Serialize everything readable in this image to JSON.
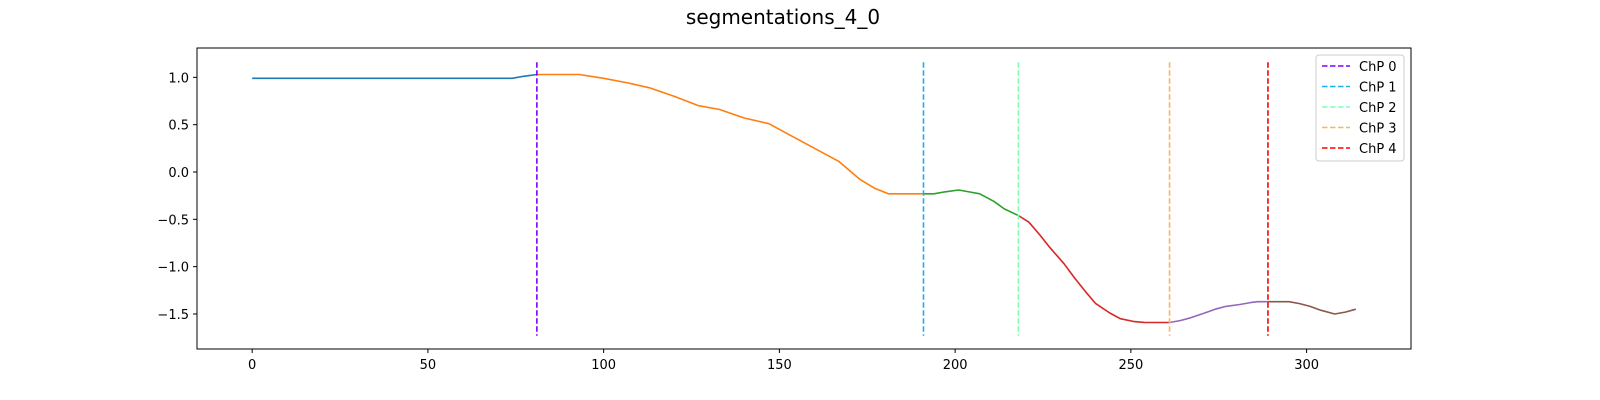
{
  "chart_data": {
    "type": "line",
    "title": "segmentations_4_0",
    "xlabel": "",
    "ylabel": "",
    "xlim": [
      -15.7,
      329.7
    ],
    "ylim": [
      -1.87,
      1.31
    ],
    "xticks": [
      0,
      50,
      100,
      150,
      200,
      250,
      300
    ],
    "yticks": [
      1.0,
      0.5,
      0.0,
      -0.5,
      -1.0,
      -1.5
    ],
    "xtick_labels": [
      "0",
      "50",
      "100",
      "150",
      "200",
      "250",
      "300"
    ],
    "ytick_labels": [
      "1.0",
      "0.5",
      "0.0",
      "−0.5",
      "−1.0",
      "−1.5"
    ],
    "grid": false,
    "legend_position": "top-right",
    "segments": [
      {
        "color": "#1f77b4",
        "x": [
          0,
          10,
          20,
          30,
          40,
          50,
          60,
          70,
          74,
          77,
          81
        ],
        "y": [
          0.99,
          0.99,
          0.99,
          0.99,
          0.99,
          0.99,
          0.99,
          0.99,
          0.99,
          1.01,
          1.03
        ]
      },
      {
        "color": "#ff7f0e",
        "x": [
          81,
          87,
          93,
          100,
          107,
          113,
          120,
          127,
          133,
          140,
          147,
          153,
          160,
          167,
          173,
          177,
          181,
          187,
          191
        ],
        "y": [
          1.03,
          1.03,
          1.03,
          0.99,
          0.94,
          0.89,
          0.8,
          0.7,
          0.66,
          0.57,
          0.51,
          0.39,
          0.25,
          0.11,
          -0.08,
          -0.17,
          -0.23,
          -0.23,
          -0.23
        ]
      },
      {
        "color": "#2ca02c",
        "x": [
          191,
          194,
          197,
          201,
          204,
          207,
          211,
          214,
          218
        ],
        "y": [
          -0.23,
          -0.23,
          -0.21,
          -0.19,
          -0.21,
          -0.23,
          -0.31,
          -0.39,
          -0.46
        ]
      },
      {
        "color": "#d62728",
        "x": [
          218,
          221,
          224,
          227,
          231,
          234,
          237,
          240,
          244,
          247,
          251,
          254,
          257,
          261
        ],
        "y": [
          -0.46,
          -0.53,
          -0.66,
          -0.8,
          -0.97,
          -1.12,
          -1.26,
          -1.39,
          -1.49,
          -1.55,
          -1.58,
          -1.59,
          -1.59,
          -1.59
        ]
      },
      {
        "color": "#9467bd",
        "x": [
          261,
          264,
          267,
          271,
          274,
          277,
          281,
          284,
          286,
          289
        ],
        "y": [
          -1.59,
          -1.57,
          -1.54,
          -1.49,
          -1.45,
          -1.42,
          -1.4,
          -1.38,
          -1.37,
          -1.37
        ]
      },
      {
        "color": "#8c564b",
        "x": [
          289,
          292,
          295,
          298,
          301,
          304,
          308,
          311,
          314
        ],
        "y": [
          -1.37,
          -1.37,
          -1.37,
          -1.39,
          -1.42,
          -1.46,
          -1.5,
          -1.48,
          -1.45
        ]
      }
    ],
    "changepoints": [
      {
        "name": "ChP 0",
        "x": 81,
        "color": "#8000ff"
      },
      {
        "name": "ChP 1",
        "x": 191,
        "color": "#1ab2e6"
      },
      {
        "name": "ChP 2",
        "x": 218,
        "color": "#80ffb4"
      },
      {
        "name": "ChP 3",
        "x": 261,
        "color": "#ffb360"
      },
      {
        "name": "ChP 4",
        "x": 289,
        "color": "#ff0000"
      }
    ]
  }
}
